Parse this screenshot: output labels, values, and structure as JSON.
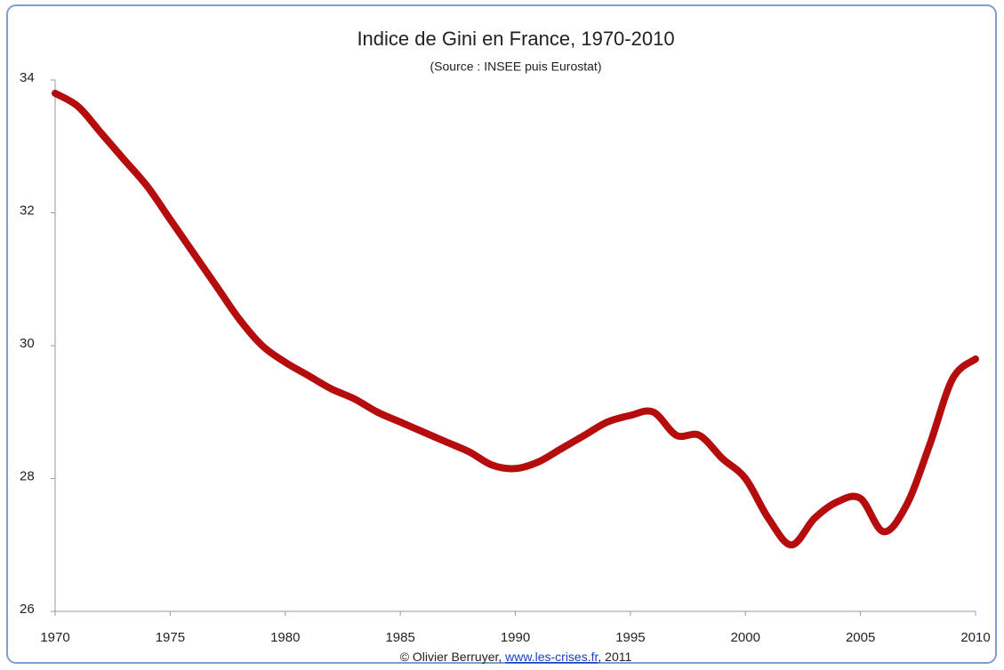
{
  "chart_data": {
    "type": "line",
    "title": "Indice de Gini en France, 1970-2010",
    "subtitle": "(Source : INSEE puis Eurostat)",
    "credit": {
      "prefix": "© Olivier Berruyer, ",
      "link": "www.les-crises.fr",
      "suffix": ",  2011"
    },
    "x": [
      1970,
      1971,
      1972,
      1973,
      1974,
      1975,
      1976,
      1977,
      1978,
      1979,
      1980,
      1981,
      1982,
      1983,
      1984,
      1985,
      1986,
      1987,
      1988,
      1989,
      1990,
      1991,
      1992,
      1993,
      1994,
      1995,
      1996,
      1997,
      1998,
      1999,
      2000,
      2001,
      2002,
      2003,
      2004,
      2005,
      2006,
      2007,
      2008,
      2009,
      2010
    ],
    "values": [
      33.8,
      33.6,
      33.2,
      32.8,
      32.4,
      31.9,
      31.4,
      30.9,
      30.4,
      30.0,
      29.75,
      29.55,
      29.35,
      29.2,
      29.0,
      28.85,
      28.7,
      28.55,
      28.4,
      28.2,
      28.15,
      28.25,
      28.45,
      28.65,
      28.85,
      28.95,
      29.0,
      28.65,
      28.65,
      28.3,
      28.0,
      27.4,
      27.0,
      27.4,
      27.65,
      27.7,
      27.2,
      27.6,
      28.5,
      29.5,
      29.8
    ],
    "color": "#b50d0d",
    "xlim": [
      1970,
      2010
    ],
    "xticks": [
      1970,
      1975,
      1980,
      1985,
      1990,
      1995,
      2000,
      2005,
      2010
    ],
    "ylim": [
      26,
      34
    ],
    "yticks": [
      26,
      28,
      30,
      32,
      34
    ],
    "grid": false
  }
}
